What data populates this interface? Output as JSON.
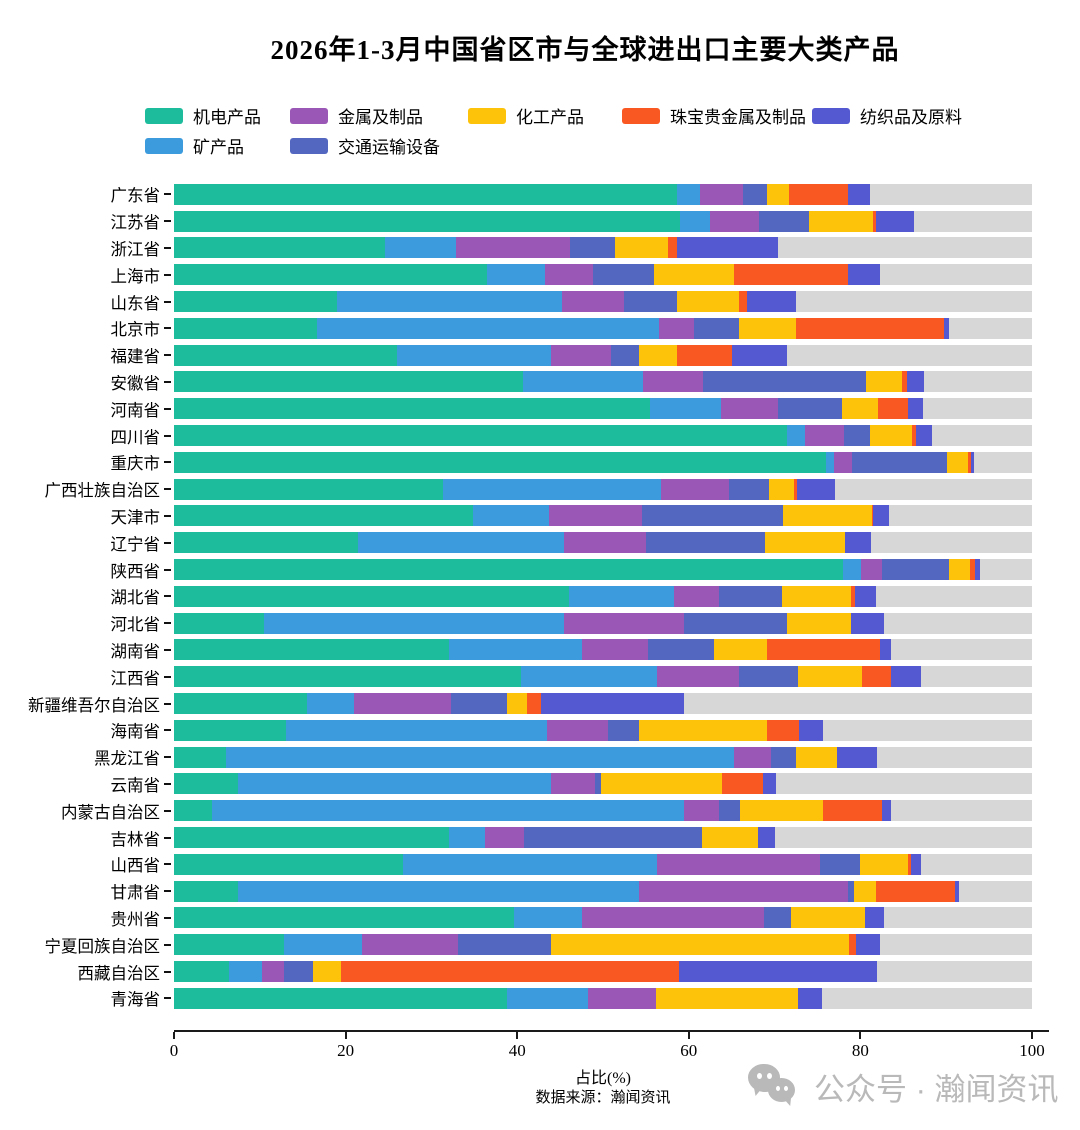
{
  "title": "2026年1-3月中国省区市与全球进出口主要大类产品",
  "legend": {
    "items": [
      {
        "label": "机电产品",
        "color": "#1dbc9c"
      },
      {
        "label": "金属及制品",
        "color": "#9a57b5"
      },
      {
        "label": "化工产品",
        "color": "#fdc20a"
      },
      {
        "label": "珠宝贵金属及制品",
        "color": "#f95823"
      },
      {
        "label": "纺织品及原料",
        "color": "#5559d1"
      },
      {
        "label": "矿产品",
        "color": "#3b9bdc"
      },
      {
        "label": "交通运输设备",
        "color": "#5367c0"
      }
    ]
  },
  "chart_data": {
    "type": "bar",
    "stacked": true,
    "orientation": "horizontal",
    "title": "2026年1-3月中国省区市与全球进出口主要大类产品",
    "xlabel": "占比(%)",
    "xlim": [
      0,
      100
    ],
    "xticks": [
      0,
      20,
      40,
      60,
      80,
      100
    ],
    "track_color": "#d7d7d7",
    "categories": [
      "广东省",
      "江苏省",
      "浙江省",
      "上海市",
      "山东省",
      "北京市",
      "福建省",
      "安徽省",
      "河南省",
      "四川省",
      "重庆市",
      "广西壮族自治区",
      "天津市",
      "辽宁省",
      "陕西省",
      "湖北省",
      "河北省",
      "湖南省",
      "江西省",
      "新疆维吾尔自治区",
      "海南省",
      "黑龙江省",
      "云南省",
      "内蒙古自治区",
      "吉林省",
      "山西省",
      "甘肃省",
      "贵州省",
      "宁夏回族自治区",
      "西藏自治区",
      "青海省"
    ],
    "series": [
      {
        "name": "机电产品",
        "color": "#1dbc9c",
        "values": [
          58.6,
          59.0,
          24.6,
          36.5,
          19.0,
          16.7,
          26.0,
          40.7,
          55.5,
          71.5,
          76.0,
          31.3,
          34.9,
          21.5,
          78.0,
          46.0,
          10.5,
          32.1,
          40.4,
          15.5,
          13.1,
          6.1,
          7.5,
          4.4,
          32.1,
          26.7,
          7.5,
          39.6,
          12.8,
          6.4,
          38.8
        ]
      },
      {
        "name": "矿产品",
        "color": "#3b9bdc",
        "values": [
          2.7,
          3.5,
          8.3,
          6.7,
          26.2,
          39.8,
          17.9,
          14.0,
          8.2,
          2.0,
          0.9,
          25.5,
          8.8,
          23.9,
          2.1,
          12.3,
          34.9,
          15.4,
          15.9,
          5.5,
          30.4,
          59.2,
          36.4,
          55.0,
          4.1,
          29.6,
          46.7,
          8.0,
          9.1,
          3.8,
          9.5
        ]
      },
      {
        "name": "金属及制品",
        "color": "#9a57b5",
        "values": [
          5.0,
          5.7,
          13.3,
          5.6,
          7.2,
          4.1,
          7.0,
          7.0,
          6.7,
          4.6,
          2.1,
          7.9,
          10.8,
          9.6,
          2.4,
          5.2,
          14.0,
          7.8,
          9.5,
          11.3,
          7.1,
          4.3,
          5.2,
          4.1,
          4.6,
          19.0,
          24.3,
          21.2,
          11.2,
          2.6,
          7.9
        ]
      },
      {
        "name": "交通运输设备",
        "color": "#5367c0",
        "values": [
          2.8,
          5.8,
          5.2,
          7.2,
          6.2,
          5.2,
          3.3,
          18.9,
          7.4,
          3.0,
          11.1,
          4.7,
          16.5,
          13.9,
          7.8,
          7.4,
          12.0,
          7.6,
          6.9,
          6.5,
          3.6,
          2.9,
          0.7,
          2.5,
          20.7,
          4.6,
          0.8,
          3.1,
          10.8,
          3.4,
          0
        ]
      },
      {
        "name": "化工产品",
        "color": "#fdc20a",
        "values": [
          2.6,
          7.5,
          6.2,
          9.3,
          7.2,
          6.7,
          4.4,
          4.2,
          4.3,
          4.9,
          2.5,
          2.9,
          10.3,
          9.3,
          2.5,
          8.0,
          7.5,
          6.2,
          7.5,
          2.3,
          14.9,
          4.8,
          14.1,
          9.7,
          6.6,
          5.7,
          2.5,
          8.6,
          34.8,
          3.3,
          16.5
        ]
      },
      {
        "name": "珠宝贵金属及制品",
        "color": "#f95823",
        "values": [
          6.9,
          0.3,
          1.0,
          13.3,
          1.0,
          17.2,
          6.4,
          0.6,
          3.4,
          0.5,
          0.3,
          0.3,
          0.2,
          0,
          0.6,
          0.5,
          0,
          13.2,
          3.4,
          1.7,
          3.7,
          0,
          4.7,
          6.8,
          0,
          0.3,
          9.2,
          0,
          0.8,
          39.4,
          0
        ]
      },
      {
        "name": "纺织品及原料",
        "color": "#5559d1",
        "values": [
          2.5,
          4.5,
          11.8,
          3.7,
          5.7,
          0.6,
          6.4,
          2.0,
          1.8,
          1.8,
          0.4,
          4.5,
          1.8,
          3.0,
          0.6,
          2.4,
          3.9,
          1.3,
          3.5,
          16.6,
          2.9,
          4.6,
          1.6,
          1.1,
          1.9,
          1.2,
          0.5,
          2.2,
          2.8,
          23.0,
          2.8
        ]
      }
    ]
  },
  "footer": {
    "source": "数据来源：瀚闻资讯",
    "watermark": "公众号 · 瀚闻资讯"
  }
}
